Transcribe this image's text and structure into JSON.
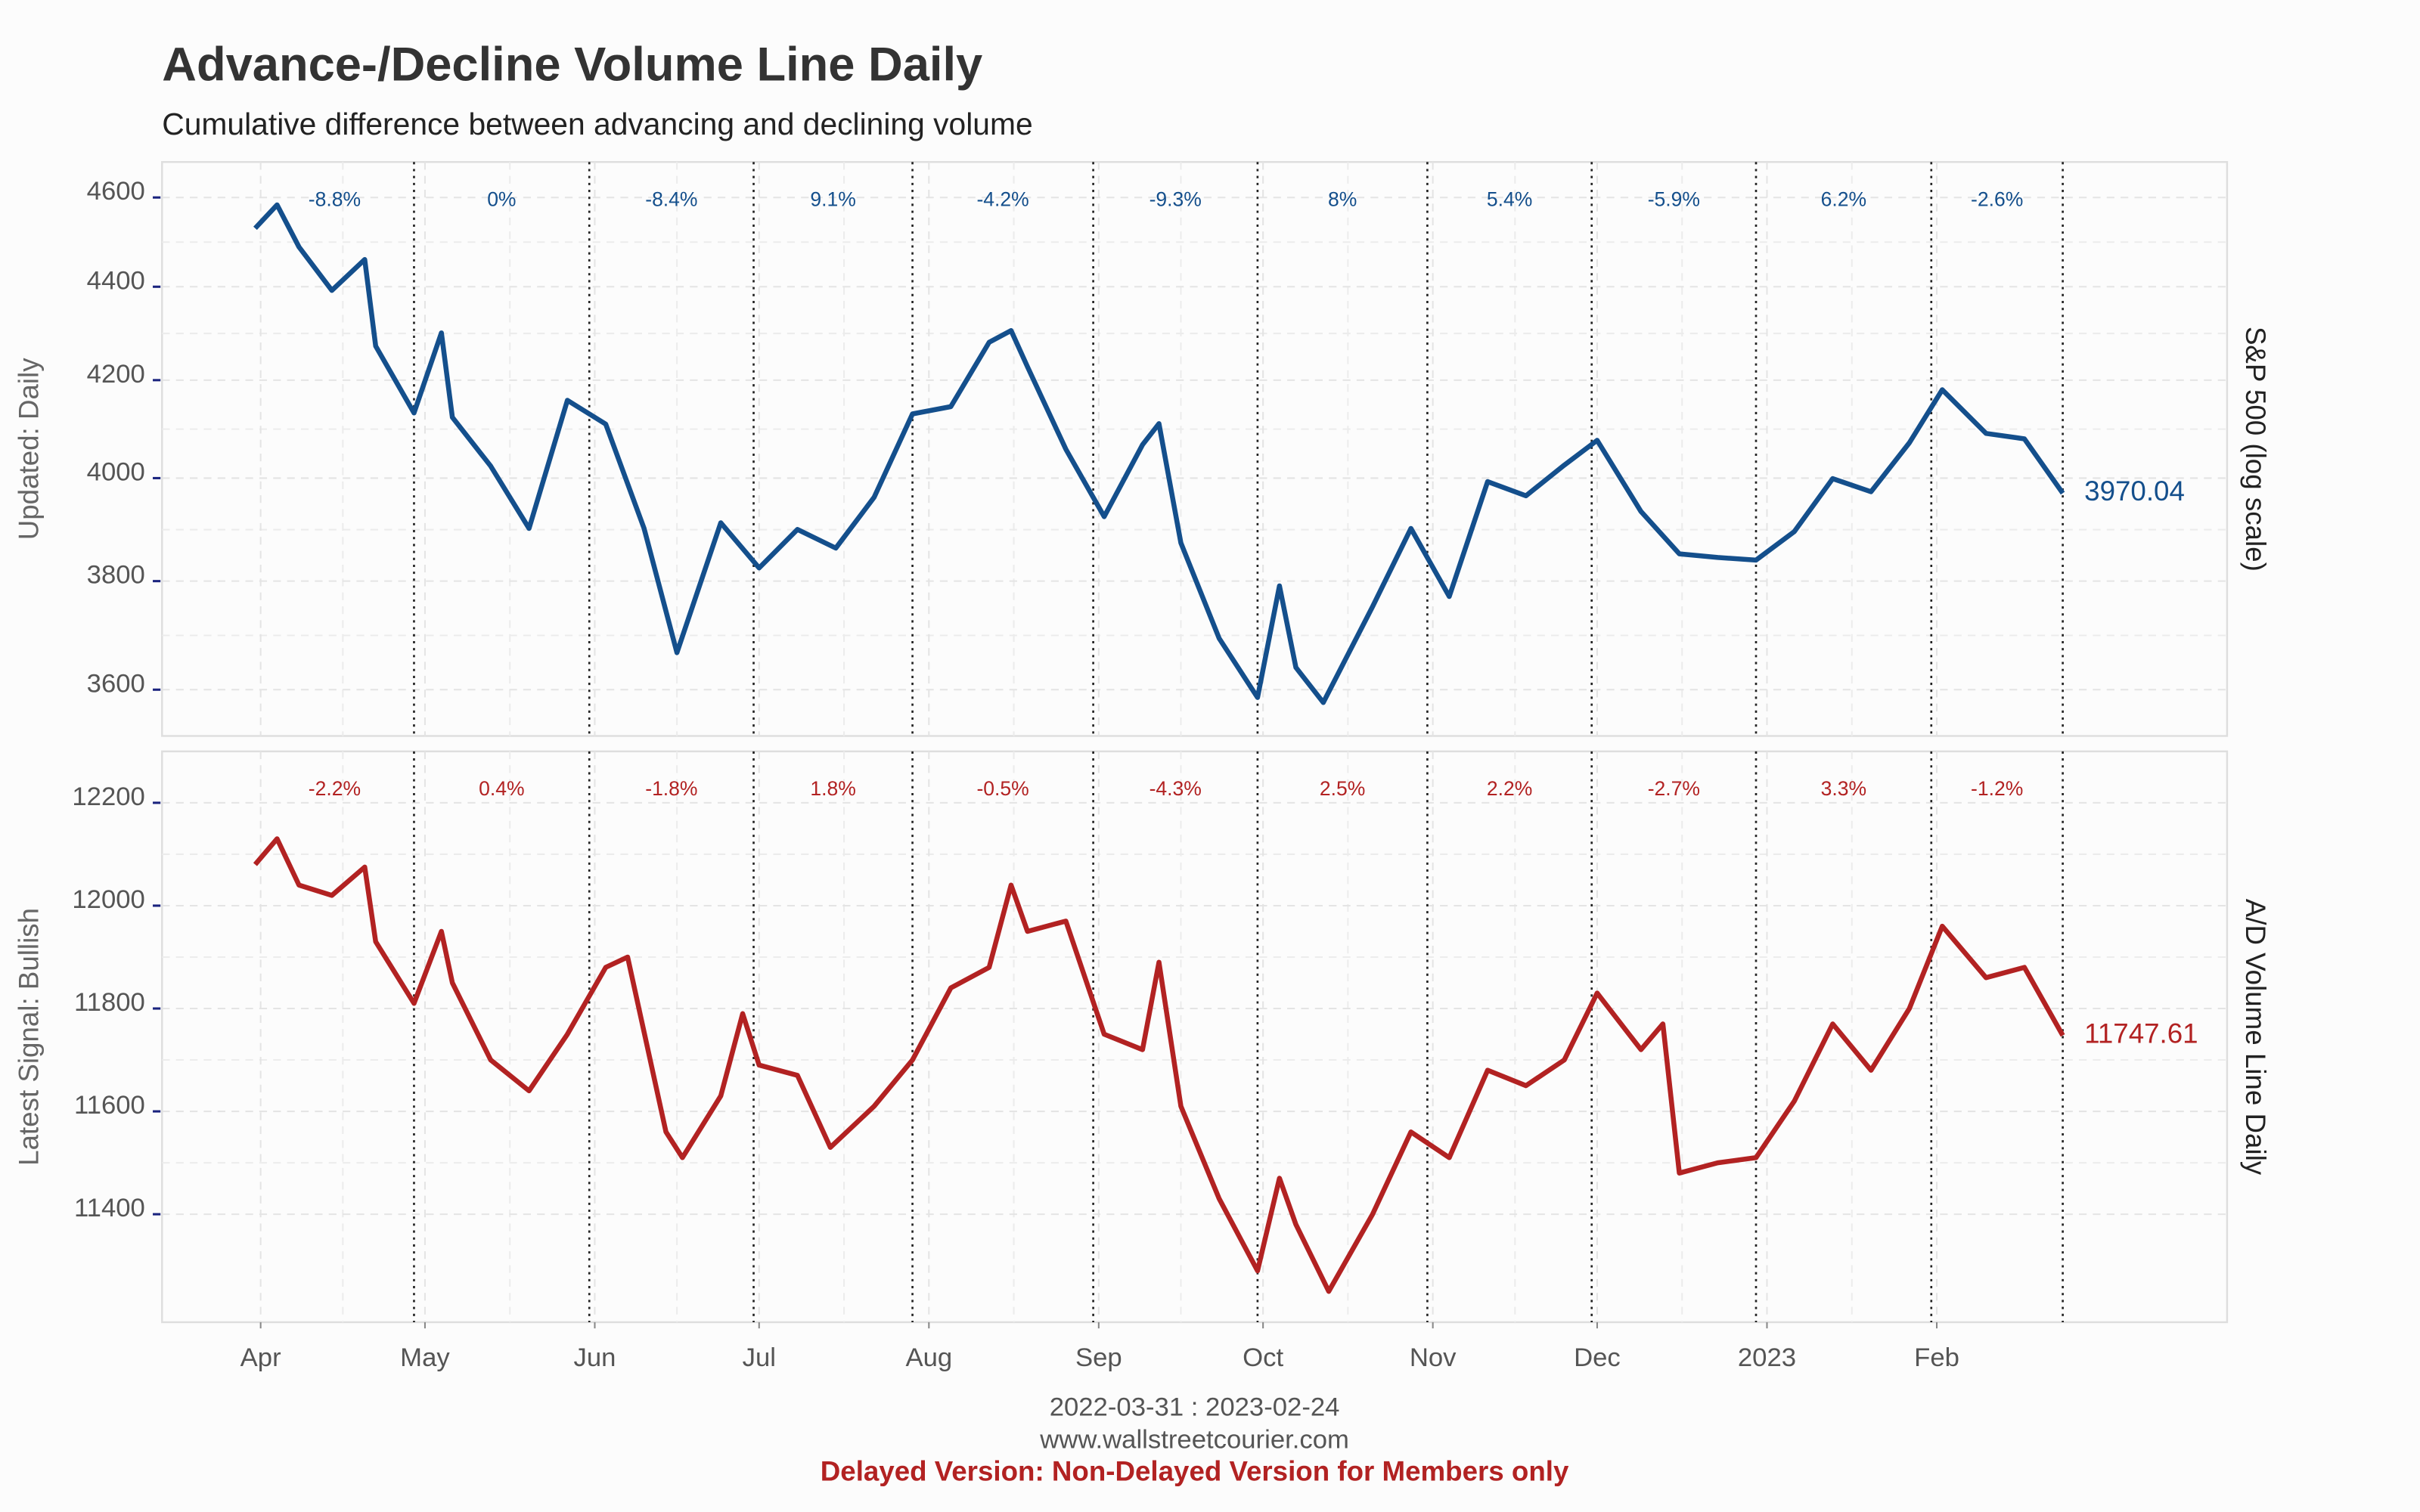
{
  "title": "Advance-/Decline Volume Line Daily",
  "subtitle": "Cumulative difference between advancing and declining volume",
  "footer": {
    "range": "2022-03-31 : 2023-02-24",
    "site": "www.wallstreetcourier.com",
    "notice": "Delayed Version: Non-Delayed Version for Members only"
  },
  "chart_data": [
    {
      "type": "line",
      "y_label": "Updated: Daily",
      "y2_label": "S&P 500 (log scale)",
      "log_scale": true,
      "grid": true,
      "xlim": [
        "2022-03-14",
        "2023-03-26"
      ],
      "xticks": [
        "2022-04-01",
        "2022-05-01",
        "2022-06-01",
        "2022-07-01",
        "2022-08-01",
        "2022-09-01",
        "2022-10-01",
        "2022-11-01",
        "2022-12-01",
        "2023-01-01",
        "2023-02-01"
      ],
      "ylim": [
        3518,
        4682
      ],
      "yticks": [
        3600,
        3800,
        4000,
        4200,
        4400,
        4600
      ],
      "x": [
        "2022-03-31",
        "2022-04-04",
        "2022-04-08",
        "2022-04-14",
        "2022-04-20",
        "2022-04-22",
        "2022-04-29",
        "2022-05-04",
        "2022-05-06",
        "2022-05-13",
        "2022-05-20",
        "2022-05-27",
        "2022-06-03",
        "2022-06-10",
        "2022-06-16",
        "2022-06-24",
        "2022-07-01",
        "2022-07-08",
        "2022-07-15",
        "2022-07-22",
        "2022-07-29",
        "2022-08-05",
        "2022-08-12",
        "2022-08-16",
        "2022-08-19",
        "2022-08-26",
        "2022-09-02",
        "2022-09-09",
        "2022-09-12",
        "2022-09-16",
        "2022-09-23",
        "2022-09-30",
        "2022-10-04",
        "2022-10-07",
        "2022-10-12",
        "2022-10-21",
        "2022-10-28",
        "2022-11-04",
        "2022-11-11",
        "2022-11-18",
        "2022-11-25",
        "2022-12-01",
        "2022-12-09",
        "2022-12-16",
        "2022-12-23",
        "2022-12-30",
        "2023-01-06",
        "2023-01-13",
        "2023-01-20",
        "2023-01-27",
        "2023-02-02",
        "2023-02-10",
        "2023-02-17",
        "2023-02-24"
      ],
      "series": [
        {
          "name": "S&P 500",
          "color": "#144f8c",
          "values": [
            4530,
            4583,
            4488,
            4392,
            4460,
            4272,
            4132,
            4300,
            4123,
            4024,
            3901,
            4158,
            4109,
            3901,
            3667,
            3912,
            3825,
            3899,
            3863,
            3962,
            4130,
            4145,
            4280,
            4305,
            4228,
            4058,
            3924,
            4067,
            4110,
            3873,
            3693,
            3586,
            3791,
            3640,
            3577,
            3752,
            3901,
            3771,
            3993,
            3965,
            4026,
            4076,
            3934,
            3852,
            3845,
            3840,
            3895,
            3999,
            3973,
            4071,
            4180,
            4090,
            4079,
            3970.04
          ]
        }
      ],
      "period_ends": [
        "2022-03-31",
        "2022-04-29",
        "2022-05-31",
        "2022-06-30",
        "2022-07-29",
        "2022-08-31",
        "2022-09-30",
        "2022-10-31",
        "2022-11-30",
        "2022-12-30",
        "2023-01-31",
        "2023-02-24"
      ],
      "period_changes": [
        -8.8,
        0,
        -8.4,
        9.1,
        -4.2,
        -9.3,
        8,
        5.4,
        -5.9,
        6.2,
        -2.6
      ],
      "period_change_labels": [
        "-8.8%",
        "0%",
        "-8.4%",
        "9.1%",
        "-4.2%",
        "-9.3%",
        "8%",
        "5.4%",
        "-5.9%",
        "6.2%",
        "-2.6%"
      ]
    },
    {
      "type": "line",
      "y_label": "Latest Signal: Bullish",
      "y2_label": "A/D Volume Line Daily",
      "log_scale": false,
      "grid": true,
      "xlim": [
        "2022-03-14",
        "2023-03-26"
      ],
      "xticks": [
        {
          "value": "2022-04-01",
          "label": "Apr"
        },
        {
          "value": "2022-05-01",
          "label": "May"
        },
        {
          "value": "2022-06-01",
          "label": "Jun"
        },
        {
          "value": "2022-07-01",
          "label": "Jul"
        },
        {
          "value": "2022-08-01",
          "label": "Aug"
        },
        {
          "value": "2022-09-01",
          "label": "Sep"
        },
        {
          "value": "2022-10-01",
          "label": "Oct"
        },
        {
          "value": "2022-11-01",
          "label": "Nov"
        },
        {
          "value": "2022-12-01",
          "label": "Dec"
        },
        {
          "value": "2023-01-01",
          "label": "2023"
        },
        {
          "value": "2023-02-01",
          "label": "Feb"
        }
      ],
      "ylim": [
        11190,
        12300
      ],
      "yticks": [
        11400,
        11600,
        11800,
        12000,
        12200
      ],
      "x": [
        "2022-03-31",
        "2022-04-04",
        "2022-04-08",
        "2022-04-14",
        "2022-04-20",
        "2022-04-22",
        "2022-04-29",
        "2022-05-04",
        "2022-05-06",
        "2022-05-13",
        "2022-05-20",
        "2022-05-27",
        "2022-06-03",
        "2022-06-07",
        "2022-06-14",
        "2022-06-17",
        "2022-06-24",
        "2022-06-28",
        "2022-07-01",
        "2022-07-08",
        "2022-07-14",
        "2022-07-22",
        "2022-07-29",
        "2022-08-05",
        "2022-08-12",
        "2022-08-16",
        "2022-08-19",
        "2022-08-26",
        "2022-09-02",
        "2022-09-09",
        "2022-09-12",
        "2022-09-16",
        "2022-09-23",
        "2022-09-30",
        "2022-10-04",
        "2022-10-07",
        "2022-10-13",
        "2022-10-21",
        "2022-10-28",
        "2022-11-04",
        "2022-11-11",
        "2022-11-18",
        "2022-11-25",
        "2022-12-01",
        "2022-12-09",
        "2022-12-13",
        "2022-12-16",
        "2022-12-23",
        "2022-12-30",
        "2023-01-06",
        "2023-01-13",
        "2023-01-20",
        "2023-01-27",
        "2023-02-02",
        "2023-02-10",
        "2023-02-17",
        "2023-02-24"
      ],
      "series": [
        {
          "name": "A/D Volume Line",
          "color": "#b22222",
          "values": [
            12080,
            12130,
            12040,
            12020,
            12075,
            11930,
            11810,
            11950,
            11850,
            11700,
            11640,
            11750,
            11880,
            11900,
            11560,
            11510,
            11630,
            11790,
            11690,
            11670,
            11530,
            11610,
            11700,
            11840,
            11880,
            12040,
            11950,
            11970,
            11750,
            11720,
            11890,
            11610,
            11430,
            11290,
            11470,
            11380,
            11250,
            11400,
            11560,
            11510,
            11680,
            11650,
            11700,
            11830,
            11720,
            11770,
            11480,
            11500,
            11510,
            11620,
            11770,
            11680,
            11800,
            11960,
            11860,
            11880,
            11747.61
          ]
        }
      ],
      "period_ends": [
        "2022-03-31",
        "2022-04-29",
        "2022-05-31",
        "2022-06-30",
        "2022-07-29",
        "2022-08-31",
        "2022-09-30",
        "2022-10-31",
        "2022-11-30",
        "2022-12-30",
        "2023-01-31",
        "2023-02-24"
      ],
      "period_changes": [
        -2.2,
        0.4,
        -1.8,
        1.8,
        -0.5,
        -4.3,
        2.5,
        2.2,
        -2.7,
        3.3,
        -1.2
      ],
      "period_change_labels": [
        "-2.2%",
        "0.4%",
        "-1.8%",
        "1.8%",
        "-0.5%",
        "-4.3%",
        "2.5%",
        "2.2%",
        "-2.7%",
        "3.3%",
        "-1.2%"
      ]
    }
  ]
}
